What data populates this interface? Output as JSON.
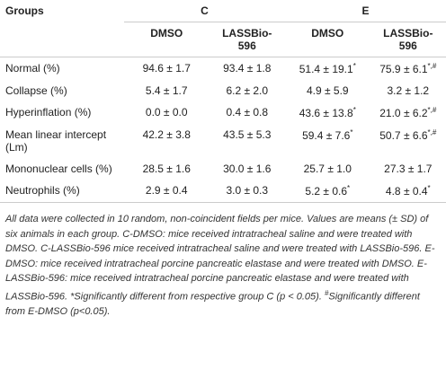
{
  "table": {
    "header": {
      "groups": "Groups",
      "c": "C",
      "e": "E"
    },
    "subheader": [
      "DMSO",
      "LASSBio-596",
      "DMSO",
      "LASSBio-596"
    ],
    "rows": [
      [
        "Normal (%)",
        {
          "text": "94.6 ± 1.7"
        },
        {
          "text": "93.4 ± 1.8"
        },
        {
          "text": "51.4 ± 19.1",
          "sup": "*"
        },
        {
          "text": "75.9 ± 6.1",
          "sup": "*,#"
        }
      ],
      [
        "Collapse (%)",
        {
          "text": "5.4 ± 1.7"
        },
        {
          "text": "6.2 ± 2.0"
        },
        {
          "text": "4.9 ± 5.9"
        },
        {
          "text": "3.2 ± 1.2"
        }
      ],
      [
        "Hyperinflation (%)",
        {
          "text": "0.0 ± 0.0"
        },
        {
          "text": "0.4 ± 0.8"
        },
        {
          "text": "43.6 ± 13.8",
          "sup": "*"
        },
        {
          "text": "21.0 ± 6.2",
          "sup": "*,#"
        }
      ],
      [
        "Mean linear intercept (Lm)",
        {
          "text": "42.2 ± 3.8"
        },
        {
          "text": "43.5 ± 5.3"
        },
        {
          "text": "59.4 ± 7.6",
          "sup": "*"
        },
        {
          "text": "50.7 ± 6.6",
          "sup": "*,#"
        }
      ],
      [
        "Mononuclear cells (%)",
        {
          "text": "28.5 ± 1.6"
        },
        {
          "text": "30.0 ± 1.6"
        },
        {
          "text": "25.7 ± 1.0"
        },
        {
          "text": "27.3 ± 1.7"
        }
      ],
      [
        "Neutrophils (%)",
        {
          "text": "2.9 ± 0.4"
        },
        {
          "text": "3.0 ± 0.3"
        },
        {
          "text": "5.2 ± 0.6",
          "sup": "*"
        },
        {
          "text": "4.8 ± 0.4",
          "sup": "*"
        }
      ]
    ]
  },
  "footnote": [
    "All data were collected in 10 random, non-coincident fields per mice. Values are means (± SD) of six animals in each group. C-DMSO: mice received intratracheal saline and were treated with DMSO. C-LASSBio-596 mice received intratracheal saline and were treated with LASSBio-596. E-DMSO: mice received intratracheal porcine pancreatic elastase and were treated with DMSO. E-LASSBio-596: mice received intratracheal porcine pancreatic elastase and were treated with LASSBio-596. *Significantly different from respective group C (p < 0.05). ",
    "#",
    "Significantly different from E-DMSO (p<0.05)."
  ]
}
